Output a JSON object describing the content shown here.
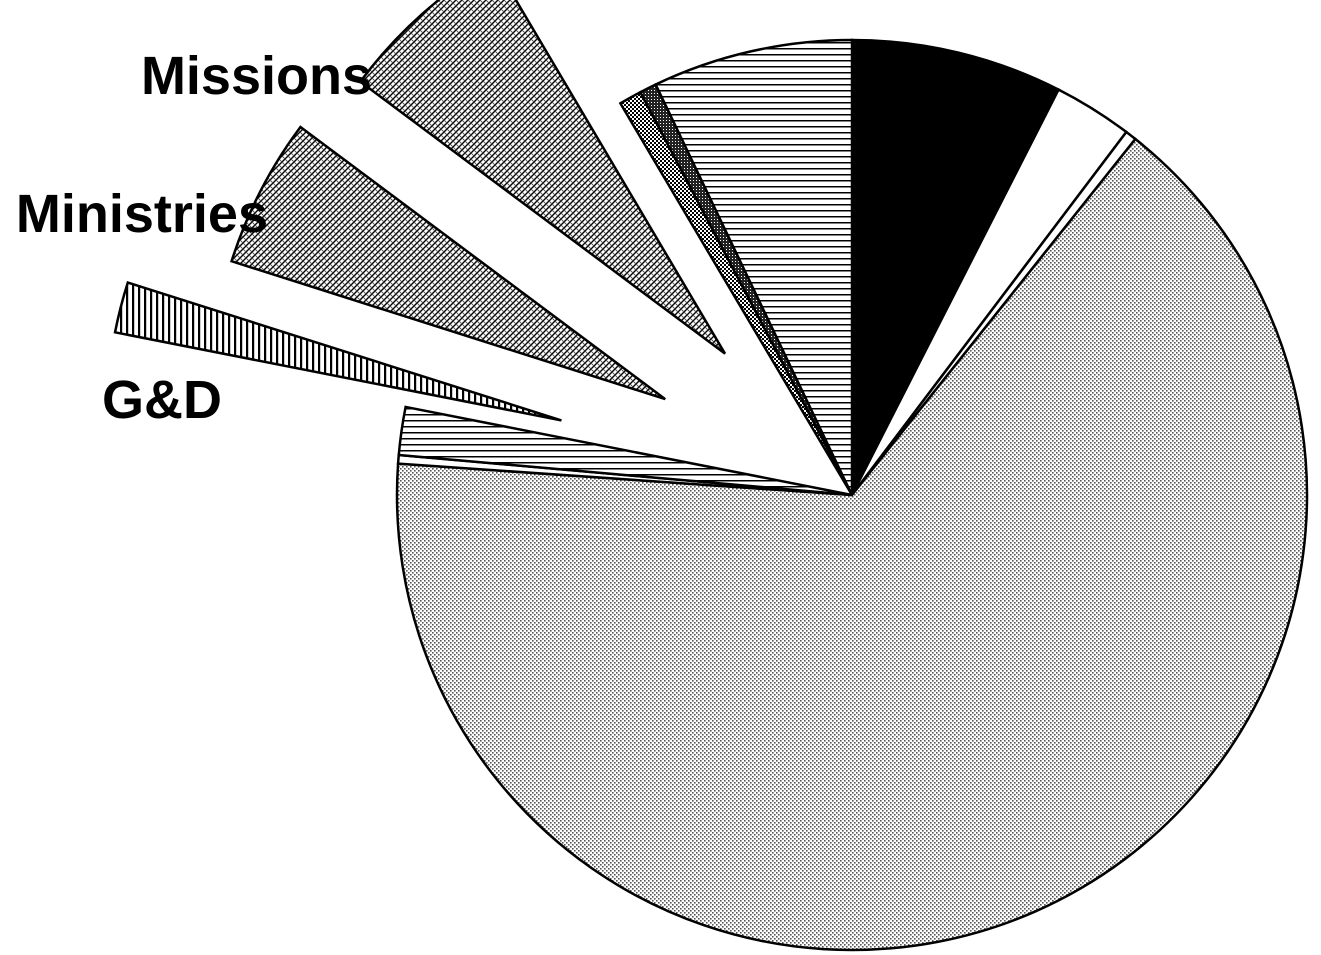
{
  "chart_data": {
    "type": "pie",
    "title": "",
    "start_angle_deg": 0,
    "direction": "clockwise",
    "units": "percent",
    "slices": [
      {
        "label": "",
        "value": 7.5,
        "pattern": "solid-black",
        "exploded": false
      },
      {
        "label": "",
        "value": 2.8,
        "pattern": "white",
        "exploded": false
      },
      {
        "label": "",
        "value": 0.4,
        "pattern": "white",
        "exploded": false
      },
      {
        "label": "",
        "value": 65.4,
        "pattern": "fine-dots",
        "exploded": false
      },
      {
        "label": "",
        "value": 0.3,
        "pattern": "white",
        "exploded": false
      },
      {
        "label": "",
        "value": 1.7,
        "pattern": "horizontal-lines",
        "exploded": false
      },
      {
        "label": "G&D",
        "value": 1.8,
        "pattern": "vertical-lines",
        "exploded": true
      },
      {
        "label": "Ministries",
        "value": 5.3,
        "pattern": "diagonal-crosshatch",
        "exploded": true
      },
      {
        "label": "Missions",
        "value": 6.3,
        "pattern": "diagonal-crosshatch",
        "exploded": true
      },
      {
        "label": "",
        "value": 0.8,
        "pattern": "checker",
        "exploded": false
      },
      {
        "label": "",
        "value": 0.6,
        "pattern": "dense-crosshatch",
        "exploded": false
      },
      {
        "label": "",
        "value": 7.1,
        "pattern": "horizontal-lines",
        "exploded": false
      }
    ],
    "legend": "none"
  }
}
